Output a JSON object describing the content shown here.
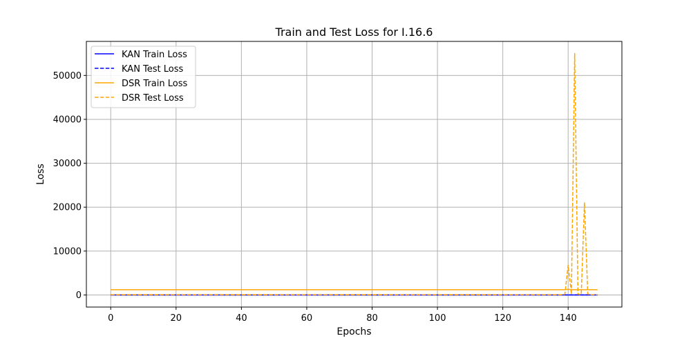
{
  "chart_data": {
    "type": "line",
    "title": "Train and Test Loss for I.16.6",
    "xlabel": "Epochs",
    "ylabel": "Loss",
    "xlim": [
      -7.45,
      156.45
    ],
    "ylim": [
      -2750,
      57750
    ],
    "xticks": [
      0,
      20,
      40,
      60,
      80,
      100,
      120,
      140
    ],
    "yticks": [
      0,
      10000,
      20000,
      30000,
      40000,
      50000
    ],
    "grid": true,
    "legend_position": "top-left",
    "series": [
      {
        "name": "KAN Train Loss",
        "color": "#0000ff",
        "dash": "solid",
        "points": [
          [
            0,
            10
          ],
          [
            149,
            10
          ]
        ]
      },
      {
        "name": "KAN Test Loss",
        "color": "#0000ff",
        "dash": "dashed",
        "points": [
          [
            0,
            15
          ],
          [
            149,
            15
          ]
        ]
      },
      {
        "name": "DSR Train Loss",
        "color": "#ffa500",
        "dash": "solid",
        "points": [
          [
            0,
            1200
          ],
          [
            139,
            1200
          ],
          [
            140,
            1300
          ],
          [
            141,
            1200
          ],
          [
            149,
            1200
          ]
        ]
      },
      {
        "name": "DSR Test Loss",
        "color": "#ffa500",
        "dash": "dashed",
        "points": [
          [
            0,
            50
          ],
          [
            138,
            50
          ],
          [
            139,
            150
          ],
          [
            140,
            6800
          ],
          [
            141,
            200
          ],
          [
            142,
            55000
          ],
          [
            143,
            200
          ],
          [
            144,
            100
          ],
          [
            145,
            21000
          ],
          [
            146,
            200
          ],
          [
            147,
            50
          ],
          [
            149,
            50
          ]
        ]
      }
    ]
  }
}
